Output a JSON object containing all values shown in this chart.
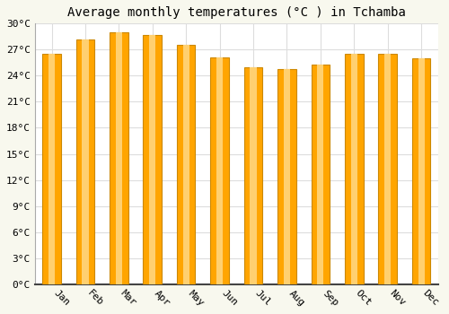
{
  "title": "Average monthly temperatures (°C ) in Tchamba",
  "months": [
    "Jan",
    "Feb",
    "Mar",
    "Apr",
    "May",
    "Jun",
    "Jul",
    "Aug",
    "Sep",
    "Oct",
    "Nov",
    "Dec"
  ],
  "temperatures": [
    26.5,
    28.2,
    29.0,
    28.7,
    27.5,
    26.1,
    25.0,
    24.8,
    25.3,
    26.5,
    26.5,
    26.0
  ],
  "bar_color": "#FFA500",
  "bar_edge_color": "#CC8800",
  "bar_left_color": "#E8940A",
  "bar_right_color": "#E8940A",
  "ylim": [
    0,
    30
  ],
  "ytick_step": 3,
  "background_color": "#F8F8EE",
  "plot_bg_color": "#FFFFFF",
  "grid_color": "#DDDDDD",
  "title_fontsize": 10,
  "tick_fontsize": 8,
  "title_font_family": "monospace",
  "bar_width": 0.55
}
